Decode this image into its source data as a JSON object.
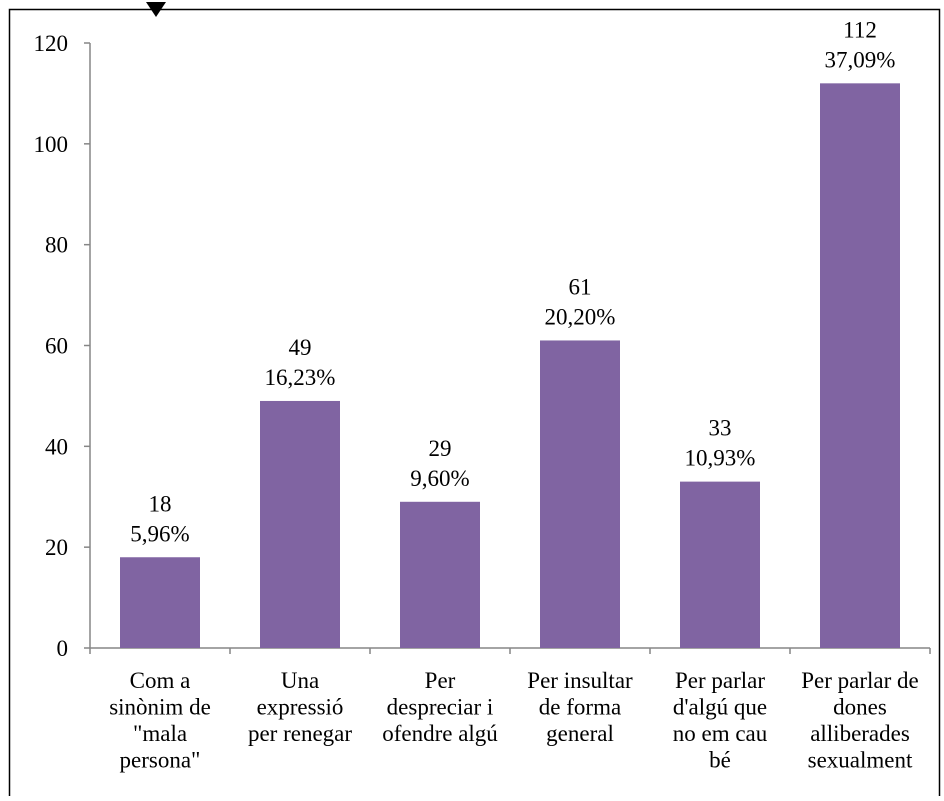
{
  "chart_data": {
    "type": "bar",
    "title": "",
    "xlabel": "",
    "ylabel": "",
    "ylim": [
      0,
      120
    ],
    "yticks": [
      0,
      20,
      40,
      60,
      80,
      100,
      120
    ],
    "grid": false,
    "legend": "none",
    "categories": [
      [
        "Com a",
        "sinònim de",
        "\"mala",
        "persona\""
      ],
      [
        "Una",
        "expressió",
        "per renegar"
      ],
      [
        "Per",
        "despreciar i",
        "ofendre algú"
      ],
      [
        "Per insultar",
        "de forma",
        "general"
      ],
      [
        "Per parlar",
        "d'algú que",
        "no em cau",
        "bé"
      ],
      [
        "Per parlar de",
        "dones",
        "alliberades",
        "sexualment"
      ]
    ],
    "values": [
      18,
      49,
      29,
      61,
      33,
      112
    ],
    "percent_labels": [
      "5,96%",
      "16,23%",
      "9,60%",
      "20,20%",
      "10,93%",
      "37,09%"
    ],
    "colors": {
      "bar": "#8064a2",
      "axis": "#868686",
      "frame": "#000000"
    }
  }
}
